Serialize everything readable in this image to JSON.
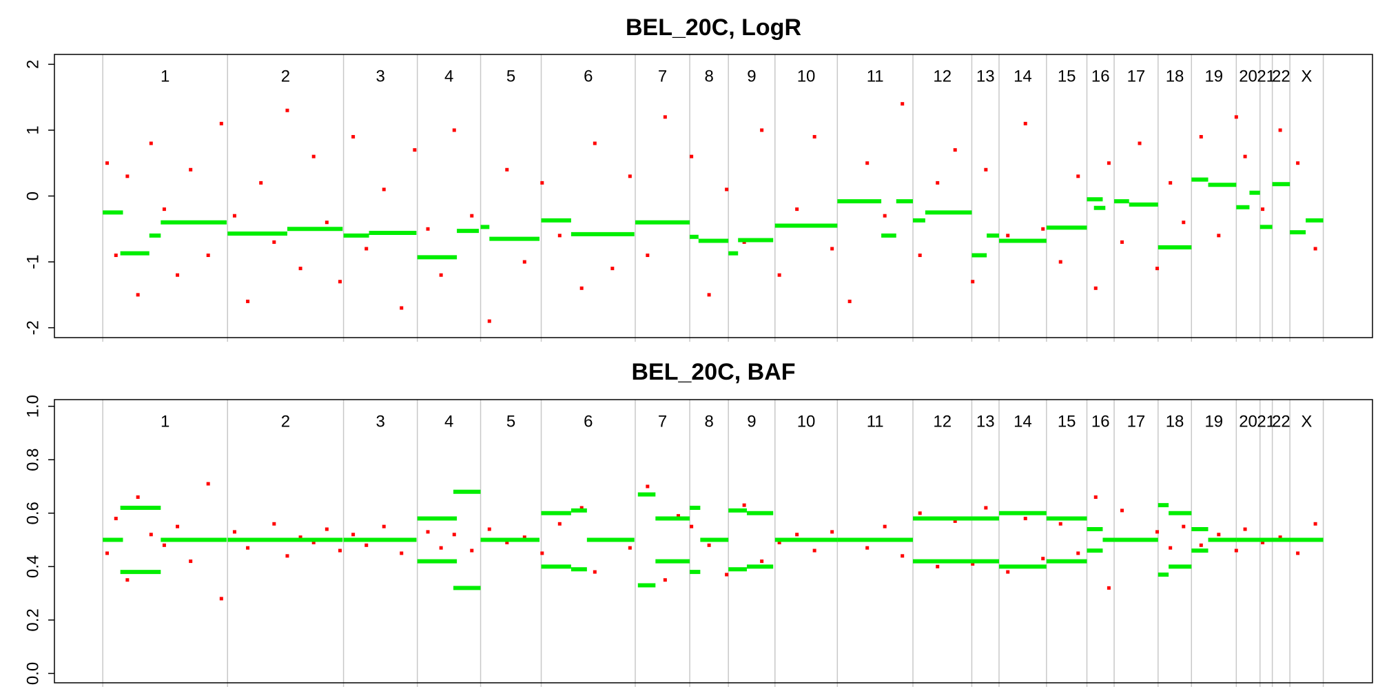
{
  "chart_data": [
    {
      "type": "scatter",
      "title": "BEL_20C, LogR",
      "xlim": [
        -55,
        1445
      ],
      "ylim": [
        -2.15,
        2.15
      ],
      "yticks": [
        -2,
        -1,
        0,
        1,
        2
      ],
      "boundaries": [
        0,
        142,
        274,
        358,
        430,
        499,
        606,
        668,
        712,
        765,
        836,
        922,
        989,
        1020,
        1074,
        1120,
        1151,
        1201,
        1239,
        1290,
        1317,
        1331,
        1351,
        1389
      ],
      "chromosomes": [
        "1",
        "2",
        "3",
        "4",
        "5",
        "6",
        "7",
        "8",
        "9",
        "10",
        "11",
        "12",
        "13",
        "14",
        "15",
        "16",
        "17",
        "18",
        "19",
        "20",
        "21",
        "22",
        "X"
      ],
      "points": {
        "color": "#ff0000",
        "x": [
          5,
          15,
          28,
          40,
          55,
          70,
          85,
          100,
          120,
          135,
          150,
          165,
          180,
          195,
          210,
          225,
          240,
          255,
          270,
          285,
          300,
          320,
          340,
          355,
          370,
          385,
          400,
          420,
          440,
          460,
          480,
          500,
          520,
          545,
          560,
          580,
          600,
          620,
          640,
          655,
          670,
          690,
          710,
          730,
          750,
          770,
          790,
          810,
          830,
          850,
          870,
          890,
          910,
          930,
          950,
          970,
          990,
          1005,
          1030,
          1050,
          1070,
          1090,
          1110,
          1130,
          1145,
          1160,
          1180,
          1200,
          1215,
          1230,
          1250,
          1270,
          1290,
          1300,
          1320,
          1340,
          1360,
          1380
        ],
        "y": [
          0.5,
          -0.9,
          0.3,
          -1.5,
          0.8,
          -0.2,
          -1.2,
          0.4,
          -0.9,
          1.1,
          -0.3,
          -1.6,
          0.2,
          -0.7,
          1.3,
          -1.1,
          0.6,
          -0.4,
          -1.3,
          0.9,
          -0.8,
          0.1,
          -1.7,
          0.7,
          -0.5,
          -1.2,
          1.0,
          -0.3,
          -1.9,
          0.4,
          -1.0,
          0.2,
          -0.6,
          -1.4,
          0.8,
          -1.1,
          0.3,
          -0.9,
          1.2,
          -0.4,
          0.6,
          -1.5,
          0.1,
          -0.7,
          1.0,
          -1.2,
          -0.2,
          0.9,
          -0.8,
          -1.6,
          0.5,
          -0.3,
          1.4,
          -0.9,
          0.2,
          0.7,
          -1.3,
          0.4,
          -0.6,
          1.1,
          -0.5,
          -1.0,
          0.3,
          -1.4,
          0.5,
          -0.7,
          0.8,
          -1.1,
          0.2,
          -0.4,
          0.9,
          -0.6,
          1.2,
          0.6,
          -0.2,
          1.0,
          0.5,
          -0.8
        ]
      },
      "segments": {
        "color": "#00ee00",
        "x0": [
          0,
          20,
          53,
          66,
          142,
          210,
          274,
          303,
          358,
          403,
          430,
          440,
          499,
          533,
          606,
          668,
          678,
          712,
          723,
          765,
          836,
          886,
          903,
          922,
          936,
          989,
          1006,
          1020,
          1074,
          1120,
          1128,
          1151,
          1168,
          1201,
          1239,
          1258,
          1290,
          1305,
          1317,
          1331,
          1351,
          1369
        ],
        "x1": [
          23,
          53,
          66,
          141,
          210,
          273,
          303,
          357,
          403,
          428,
          440,
          497,
          533,
          605,
          668,
          678,
          712,
          723,
          763,
          836,
          886,
          903,
          922,
          936,
          989,
          1006,
          1020,
          1074,
          1120,
          1138,
          1141,
          1168,
          1201,
          1239,
          1258,
          1290,
          1305,
          1317,
          1331,
          1351,
          1369,
          1389
        ],
        "y": [
          -0.25,
          -0.87,
          -0.6,
          -0.4,
          -0.57,
          -0.5,
          -0.6,
          -0.56,
          -0.93,
          -0.53,
          -0.47,
          -0.65,
          -0.37,
          -0.58,
          -0.4,
          -0.62,
          -0.68,
          -0.87,
          -0.67,
          -0.45,
          -0.08,
          -0.6,
          -0.08,
          -0.37,
          -0.25,
          -0.9,
          -0.6,
          -0.68,
          -0.48,
          -0.05,
          -0.18,
          -0.08,
          -0.13,
          -0.78,
          0.25,
          0.17,
          -0.17,
          0.05,
          -0.47,
          0.18,
          -0.55,
          -0.37
        ]
      }
    },
    {
      "type": "scatter",
      "title": "BEL_20C, BAF",
      "xlim": [
        -55,
        1445
      ],
      "ylim": [
        -0.035,
        1.025
      ],
      "yticks": [
        {
          "value": 0,
          "label": "0.0"
        },
        0.2,
        0.4,
        0.6,
        0.8,
        {
          "value": 1,
          "label": "1.0"
        }
      ],
      "boundaries": [
        0,
        142,
        274,
        358,
        430,
        499,
        606,
        668,
        712,
        765,
        836,
        922,
        989,
        1020,
        1074,
        1120,
        1151,
        1201,
        1239,
        1290,
        1317,
        1331,
        1351,
        1389
      ],
      "chromosomes": [
        "1",
        "2",
        "3",
        "4",
        "5",
        "6",
        "7",
        "8",
        "9",
        "10",
        "11",
        "12",
        "13",
        "14",
        "15",
        "16",
        "17",
        "18",
        "19",
        "20",
        "21",
        "22",
        "X"
      ],
      "points": {
        "color": "#ff0000",
        "x": [
          5,
          15,
          28,
          40,
          55,
          70,
          85,
          100,
          120,
          135,
          150,
          165,
          180,
          195,
          210,
          225,
          240,
          255,
          270,
          285,
          300,
          320,
          340,
          355,
          370,
          385,
          400,
          420,
          440,
          460,
          480,
          500,
          520,
          545,
          560,
          580,
          600,
          620,
          640,
          655,
          670,
          690,
          710,
          730,
          750,
          770,
          790,
          810,
          830,
          850,
          870,
          890,
          910,
          930,
          950,
          970,
          990,
          1005,
          1030,
          1050,
          1070,
          1090,
          1110,
          1130,
          1145,
          1160,
          1180,
          1200,
          1215,
          1230,
          1250,
          1270,
          1290,
          1300,
          1320,
          1340,
          1360,
          1380
        ],
        "y": [
          0.45,
          0.58,
          0.35,
          0.66,
          0.52,
          0.48,
          0.55,
          0.42,
          0.71,
          0.28,
          0.53,
          0.47,
          0.5,
          0.56,
          0.44,
          0.51,
          0.49,
          0.54,
          0.46,
          0.52,
          0.48,
          0.55,
          0.45,
          0.5,
          0.53,
          0.47,
          0.52,
          0.46,
          0.54,
          0.49,
          0.51,
          0.45,
          0.56,
          0.62,
          0.38,
          0.5,
          0.47,
          0.7,
          0.35,
          0.59,
          0.55,
          0.48,
          0.37,
          0.63,
          0.42,
          0.49,
          0.52,
          0.46,
          0.53,
          0.5,
          0.47,
          0.55,
          0.44,
          0.6,
          0.4,
          0.57,
          0.41,
          0.62,
          0.38,
          0.58,
          0.43,
          0.56,
          0.45,
          0.66,
          0.32,
          0.61,
          0.5,
          0.53,
          0.47,
          0.55,
          0.48,
          0.52,
          0.46,
          0.54,
          0.49,
          0.51,
          0.45,
          0.56
        ]
      },
      "segments": {
        "color": "#00ee00",
        "x0": [
          0,
          20,
          20,
          66,
          142,
          274,
          358,
          358,
          399,
          399,
          430,
          499,
          499,
          533,
          533,
          551,
          609,
          609,
          629,
          629,
          668,
          668,
          680,
          712,
          712,
          733,
          733,
          765,
          836,
          922,
          922,
          989,
          989,
          1020,
          1020,
          1074,
          1074,
          1120,
          1120,
          1138,
          1151,
          1201,
          1201,
          1213,
          1213,
          1239,
          1239,
          1258,
          1290
        ],
        "x1": [
          23,
          66,
          66,
          141,
          273,
          357,
          403,
          403,
          430,
          430,
          497,
          533,
          533,
          551,
          551,
          605,
          629,
          629,
          668,
          668,
          680,
          680,
          712,
          733,
          733,
          763,
          763,
          836,
          922,
          989,
          989,
          1020,
          1020,
          1074,
          1074,
          1120,
          1120,
          1138,
          1138,
          1151,
          1201,
          1213,
          1213,
          1239,
          1239,
          1258,
          1258,
          1290,
          1389
        ],
        "y": [
          0.5,
          0.62,
          0.38,
          0.5,
          0.5,
          0.5,
          0.58,
          0.42,
          0.68,
          0.32,
          0.5,
          0.6,
          0.4,
          0.61,
          0.39,
          0.5,
          0.67,
          0.33,
          0.58,
          0.42,
          0.62,
          0.38,
          0.5,
          0.61,
          0.39,
          0.6,
          0.4,
          0.5,
          0.5,
          0.58,
          0.42,
          0.58,
          0.42,
          0.6,
          0.4,
          0.58,
          0.42,
          0.54,
          0.46,
          0.5,
          0.5,
          0.63,
          0.37,
          0.6,
          0.4,
          0.54,
          0.46,
          0.5,
          0.5
        ]
      }
    }
  ]
}
